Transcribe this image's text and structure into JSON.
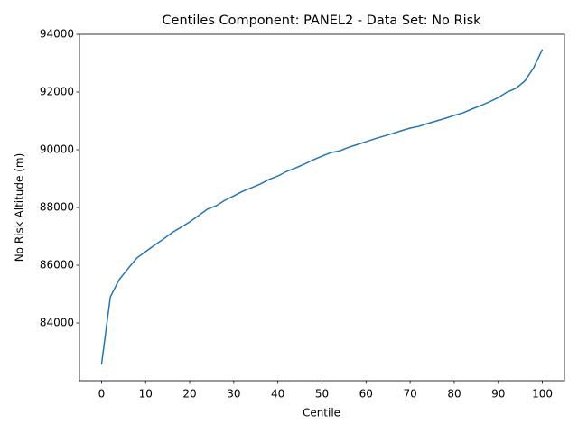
{
  "chart_data": {
    "type": "line",
    "title": "Centiles Component: PANEL2 - Data Set: No Risk",
    "xlabel": "Centile",
    "ylabel": "No Risk Altitude (m)",
    "x": [
      0,
      2,
      4,
      6,
      8,
      10,
      12,
      14,
      16,
      18,
      20,
      22,
      24,
      26,
      28,
      30,
      32,
      34,
      36,
      38,
      40,
      42,
      44,
      46,
      48,
      50,
      52,
      54,
      56,
      58,
      60,
      62,
      64,
      66,
      68,
      70,
      72,
      74,
      76,
      78,
      80,
      82,
      84,
      86,
      88,
      90,
      92,
      94,
      96,
      98,
      100
    ],
    "series": [
      {
        "color": "#1f77b4",
        "values": [
          82560,
          84900,
          85500,
          85880,
          86250,
          86470,
          86690,
          86900,
          87130,
          87310,
          87500,
          87720,
          87940,
          88060,
          88250,
          88400,
          88560,
          88680,
          88810,
          88970,
          89090,
          89250,
          89370,
          89500,
          89650,
          89780,
          89900,
          89960,
          90080,
          90180,
          90280,
          90380,
          90470,
          90560,
          90660,
          90750,
          90810,
          90910,
          91000,
          91090,
          91190,
          91280,
          91410,
          91530,
          91660,
          91810,
          92000,
          92130,
          92380,
          92840,
          93480
        ]
      }
    ],
    "xlim": [
      -5,
      105
    ],
    "xticks": [
      0,
      10,
      20,
      30,
      40,
      50,
      60,
      70,
      80,
      90,
      100
    ],
    "ylim": [
      82000,
      94000
    ],
    "yticks": [
      84000,
      86000,
      88000,
      90000,
      92000,
      94000
    ]
  }
}
